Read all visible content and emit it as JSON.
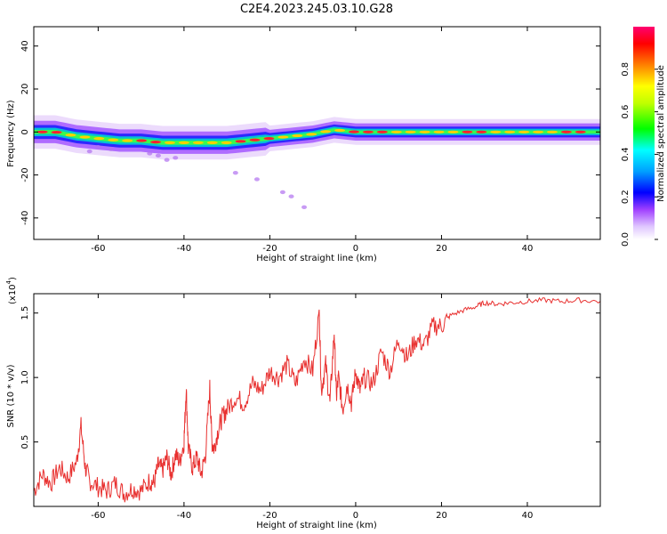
{
  "figure": {
    "title": "C2E4.2023.245.03.10.G28"
  },
  "chart_data": [
    {
      "type": "heatmap",
      "xlabel": "Height of straight line (km)",
      "ylabel": "Frequency (Hz)",
      "xlim": [
        -75,
        57
      ],
      "ylim": [
        -50,
        49
      ],
      "xticks": [
        -60,
        -40,
        -20,
        0,
        20,
        40
      ],
      "yticks": [
        -40,
        -20,
        0,
        20,
        40
      ],
      "colorbar": {
        "label": "Normalized spectral amplitude",
        "range": [
          0,
          1
        ],
        "ticks": [
          "0.0",
          "0.2",
          "0.4",
          "0.6",
          "0.8"
        ],
        "tick_values": [
          0.0,
          0.2,
          0.4,
          0.6,
          0.8
        ]
      },
      "ridge": {
        "x": [
          -75,
          -70,
          -65,
          -60,
          -55,
          -50,
          -45,
          -40,
          -35,
          -30,
          -25,
          -20,
          -15,
          -10,
          -5,
          0,
          5,
          10,
          15,
          20,
          25,
          30,
          35,
          40,
          45,
          50,
          57
        ],
        "freq_hz": [
          0,
          0,
          -2,
          -3,
          -4,
          -4,
          -5,
          -5,
          -5,
          -5,
          -4,
          -3,
          -2,
          -1,
          1,
          0,
          0,
          0,
          0,
          0,
          0,
          0,
          0,
          0,
          0,
          0,
          0
        ]
      },
      "scatter_points": [
        {
          "x": -48,
          "y": -10
        },
        {
          "x": -46,
          "y": -11
        },
        {
          "x": -44,
          "y": -13
        },
        {
          "x": -42,
          "y": -12
        },
        {
          "x": -28,
          "y": -19
        },
        {
          "x": -23,
          "y": -22
        },
        {
          "x": -17,
          "y": -28
        },
        {
          "x": -15,
          "y": -30
        },
        {
          "x": -12,
          "y": -35
        },
        {
          "x": -60,
          "y": -7
        },
        {
          "x": -62,
          "y": -9
        },
        {
          "x": -57,
          "y": -8
        }
      ],
      "colors": [
        "#ffffff",
        "#d8b8f8",
        "#8a2be2",
        "#0000ff",
        "#00ffff",
        "#00ff00",
        "#ffff00",
        "#ff8c00",
        "#ff0000",
        "#ff1493"
      ]
    },
    {
      "type": "line",
      "xlabel": "Height of straight line (km)",
      "ylabel": "SNR (10 * v/v)",
      "yscale_label": "(x10",
      "yscale_exp": "4",
      "yscale_close": ")",
      "xlim": [
        -75,
        57
      ],
      "ylim": [
        0,
        1.65
      ],
      "xticks": [
        -60,
        -40,
        -20,
        0,
        20,
        40
      ],
      "yticks": [
        0.5,
        1.0,
        1.5
      ],
      "ytick_labels": [
        "0.5",
        "1.0",
        "1.5"
      ],
      "color": "#e8302f",
      "series": [
        {
          "x": [
            -75,
            -73,
            -71,
            -69,
            -67,
            -65,
            -64,
            -63,
            -62,
            -60,
            -58,
            -56,
            -54,
            -52,
            -50,
            -48,
            -47,
            -46,
            -45,
            -44,
            -43,
            -42,
            -41,
            -40,
            -39.5,
            -39,
            -38,
            -37,
            -36,
            -35,
            -34,
            -33.5,
            -33,
            -32,
            -31,
            -30,
            -28,
            -26,
            -24,
            -22,
            -20,
            -18,
            -16,
            -14,
            -12,
            -10,
            -8.5,
            -8,
            -7,
            -6,
            -5,
            -4.5,
            -4,
            -3,
            -2,
            -1,
            0,
            1,
            2,
            4,
            6,
            8,
            10,
            12,
            14,
            16,
            18,
            20,
            22,
            25,
            28,
            30,
            33,
            36,
            40,
            44,
            48,
            52,
            57
          ],
          "values": [
            0.12,
            0.25,
            0.18,
            0.3,
            0.22,
            0.35,
            0.62,
            0.3,
            0.2,
            0.15,
            0.12,
            0.18,
            0.1,
            0.14,
            0.12,
            0.2,
            0.18,
            0.32,
            0.28,
            0.38,
            0.25,
            0.4,
            0.35,
            0.5,
            0.92,
            0.45,
            0.3,
            0.38,
            0.25,
            0.4,
            0.92,
            0.5,
            0.45,
            0.6,
            0.7,
            0.75,
            0.85,
            0.8,
            0.95,
            0.9,
            1.05,
            1.0,
            1.1,
            0.95,
            1.15,
            1.05,
            1.52,
            0.9,
            1.1,
            0.8,
            1.35,
            0.85,
            1.0,
            0.75,
            0.95,
            0.8,
            1.05,
            0.9,
            1.0,
            0.95,
            1.2,
            1.05,
            1.3,
            1.15,
            1.3,
            1.25,
            1.4,
            1.4,
            1.48,
            1.52,
            1.55,
            1.58,
            1.57,
            1.58,
            1.59,
            1.6,
            1.59,
            1.6,
            1.59
          ]
        }
      ]
    }
  ]
}
